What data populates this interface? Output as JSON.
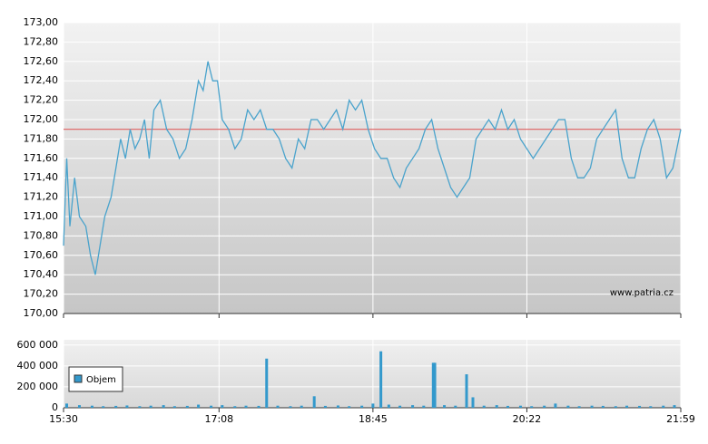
{
  "chart_data": [
    {
      "type": "line",
      "x": [
        930,
        932,
        934,
        937,
        940,
        944,
        947,
        950,
        953,
        956,
        960,
        963,
        966,
        969,
        972,
        975,
        978,
        981,
        984,
        987,
        991,
        995,
        999,
        1003,
        1007,
        1011,
        1015,
        1018,
        1021,
        1024,
        1027,
        1030,
        1034,
        1038,
        1042,
        1046,
        1050,
        1054,
        1058,
        1062,
        1066,
        1070,
        1074,
        1078,
        1082,
        1086,
        1090,
        1094,
        1098,
        1102,
        1106,
        1110,
        1114,
        1118,
        1122,
        1126,
        1130,
        1134,
        1138,
        1142,
        1146,
        1150,
        1154,
        1158,
        1162,
        1166,
        1170,
        1174,
        1178,
        1182,
        1186,
        1190,
        1194,
        1198,
        1202,
        1206,
        1210,
        1214,
        1218,
        1222,
        1226,
        1230,
        1234,
        1238,
        1242,
        1246,
        1250,
        1254,
        1258,
        1262,
        1266,
        1270,
        1274,
        1278,
        1282,
        1286,
        1290,
        1294,
        1298,
        1302,
        1306,
        1310,
        1314,
        1319
      ],
      "series": [
        {
          "color": "#4aa3cc",
          "values": [
            170.7,
            171.6,
            170.9,
            171.4,
            171.0,
            170.9,
            170.6,
            170.4,
            170.7,
            171.0,
            171.2,
            171.5,
            171.8,
            171.6,
            171.9,
            171.7,
            171.8,
            172.0,
            171.6,
            172.1,
            172.2,
            171.9,
            171.8,
            171.6,
            171.7,
            172.0,
            172.4,
            172.3,
            172.6,
            172.4,
            172.4,
            172.0,
            171.9,
            171.7,
            171.8,
            172.1,
            172.0,
            172.1,
            171.9,
            171.9,
            171.8,
            171.6,
            171.5,
            171.8,
            171.7,
            172.0,
            172.0,
            171.9,
            172.0,
            172.1,
            171.9,
            172.2,
            172.1,
            172.2,
            171.9,
            171.7,
            171.6,
            171.6,
            171.4,
            171.3,
            171.5,
            171.6,
            171.7,
            171.9,
            172.0,
            171.7,
            171.5,
            171.3,
            171.2,
            171.3,
            171.4,
            171.8,
            171.9,
            172.0,
            171.9,
            172.1,
            171.9,
            172.0,
            171.8,
            171.7,
            171.6,
            171.7,
            171.8,
            171.9,
            172.0,
            172.0,
            171.6,
            171.4,
            171.4,
            171.5,
            171.8,
            171.9,
            172.0,
            172.1,
            171.6,
            171.4,
            171.4,
            171.7,
            171.9,
            172.0,
            171.8,
            171.4,
            171.5,
            171.9
          ]
        }
      ],
      "xlim": [
        930,
        1319
      ],
      "ylim": [
        170,
        173
      ],
      "yticks": [
        {
          "value": 170,
          "label": "170,00"
        },
        {
          "value": 170.2,
          "label": "170,20"
        },
        {
          "value": 170.4,
          "label": "170,40"
        },
        {
          "value": 170.6,
          "label": "170,60"
        },
        {
          "value": 170.8,
          "label": "170,80"
        },
        {
          "value": 171,
          "label": "171,00"
        },
        {
          "value": 171.2,
          "label": "171,20"
        },
        {
          "value": 171.4,
          "label": "171,40"
        },
        {
          "value": 171.6,
          "label": "171,60"
        },
        {
          "value": 171.8,
          "label": "171,80"
        },
        {
          "value": 172,
          "label": "172,00"
        },
        {
          "value": 172.2,
          "label": "172,20"
        },
        {
          "value": 172.4,
          "label": "172,40"
        },
        {
          "value": 172.6,
          "label": "172,60"
        },
        {
          "value": 172.8,
          "label": "172,80"
        },
        {
          "value": 173,
          "label": "173,00"
        }
      ],
      "reference_line": {
        "value": 171.9,
        "color": "#e06060"
      },
      "annotation": "www.patria.cz",
      "grid": true
    },
    {
      "type": "bar",
      "x": [
        932,
        940,
        948,
        955,
        963,
        970,
        978,
        985,
        993,
        1000,
        1008,
        1015,
        1023,
        1030,
        1038,
        1045,
        1053,
        1058,
        1065,
        1073,
        1080,
        1088,
        1095,
        1103,
        1110,
        1118,
        1125,
        1130,
        1135,
        1142,
        1150,
        1157,
        1163,
        1164,
        1170,
        1177,
        1184,
        1188,
        1195,
        1203,
        1210,
        1218,
        1225,
        1233,
        1240,
        1248,
        1255,
        1263,
        1270,
        1278,
        1285,
        1293,
        1300,
        1308,
        1315
      ],
      "series": [
        {
          "name": "Objem",
          "color": "#3399cc",
          "values": [
            40000,
            25000,
            20000,
            15000,
            18000,
            22000,
            15000,
            20000,
            25000,
            15000,
            18000,
            30000,
            20000,
            25000,
            15000,
            20000,
            18000,
            470000,
            20000,
            15000,
            20000,
            110000,
            18000,
            22000,
            15000,
            20000,
            40000,
            540000,
            30000,
            20000,
            25000,
            20000,
            430000,
            430000,
            25000,
            20000,
            320000,
            100000,
            20000,
            25000,
            18000,
            20000,
            15000,
            20000,
            40000,
            20000,
            15000,
            20000,
            18000,
            15000,
            20000,
            18000,
            15000,
            20000,
            25000
          ]
        }
      ],
      "xlim": [
        930,
        1319
      ],
      "xticks": [
        {
          "value": 930,
          "label": "15:30"
        },
        {
          "value": 1028,
          "label": "17:08"
        },
        {
          "value": 1125,
          "label": "18:45"
        },
        {
          "value": 1222,
          "label": "20:22"
        },
        {
          "value": 1319,
          "label": "21:59"
        }
      ],
      "ylim": [
        0,
        650000
      ],
      "yticks": [
        0,
        {
          "value": 200000,
          "label": "200 000"
        },
        {
          "value": 400000,
          "label": "400 000"
        },
        {
          "value": 600000,
          "label": "600 000"
        }
      ],
      "grid": true
    }
  ]
}
